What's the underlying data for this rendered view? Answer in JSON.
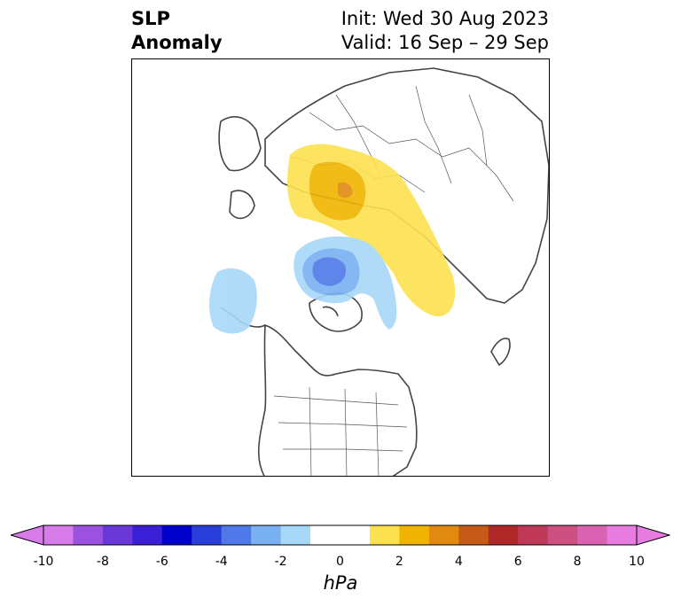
{
  "title": {
    "left_line1": "SLP",
    "left_line2": "Anomaly",
    "right_line1": "Init: Wed 30 Aug 2023",
    "right_line2": "Valid: 16 Sep – 29 Sep"
  },
  "map": {
    "projection": "polar-stereographic",
    "field": "SLP anomaly",
    "features": [
      "coastlines",
      "country-borders",
      "state-borders"
    ]
  },
  "colorbar": {
    "unit": "hPa",
    "ticks": [
      "-10",
      "-8",
      "-6",
      "-4",
      "-2",
      "0",
      "2",
      "4",
      "6",
      "8",
      "10"
    ],
    "colors": [
      "#d77be8",
      "#9b52e0",
      "#6a38d8",
      "#3b1fd6",
      "#0000cc",
      "#2a3fd9",
      "#4f78e8",
      "#78b0f2",
      "#a8d8f8",
      "#ffffff",
      "#ffffff",
      "#fde24f",
      "#f0b400",
      "#e08a10",
      "#c85a18",
      "#b02828",
      "#c03858",
      "#cc5080",
      "#d963b0",
      "#e87be0"
    ]
  },
  "anomaly_regions": [
    {
      "name": "siberia-positive",
      "sign": "positive",
      "max_hPa": 3
    },
    {
      "name": "arctic-negative",
      "sign": "negative",
      "min_hPa": -5
    },
    {
      "name": "pacific-negative",
      "sign": "negative",
      "min_hPa": -2
    }
  ]
}
